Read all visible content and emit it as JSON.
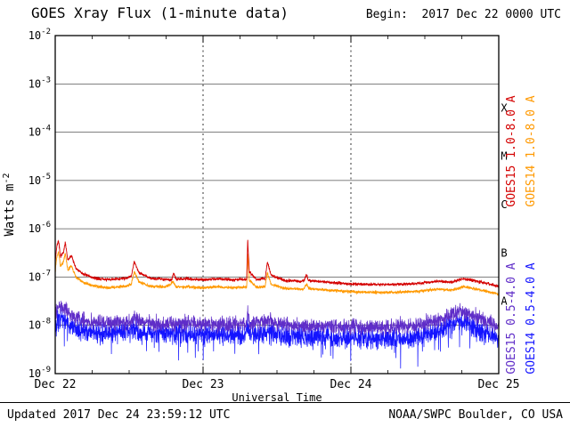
{
  "header": {
    "title": "GOES Xray Flux (1-minute data)",
    "begin_label": "Begin:  2017 Dec 22 0000 UTC"
  },
  "footer": {
    "updated": "Updated 2017 Dec 24 23:59:12 UTC",
    "source": "NOAA/SWPC Boulder, CO USA"
  },
  "chart_data": {
    "type": "line",
    "title": "GOES Xray Flux (1-minute data)",
    "begin": "2017 Dec 22 0000 UTC",
    "updated": "2017 Dec 24 23:59:12 UTC",
    "xlabel": "Universal Time",
    "ylabel_base": "Watts m",
    "ylabel_sup": "-2",
    "x_axis_unit": "days since 2017 Dec 22 0000 UTC",
    "y_axis_unit": "Watts m^-2 (log scale)",
    "xlim_days": [
      0,
      3
    ],
    "ylim_log10": [
      -9,
      -2
    ],
    "grid": true,
    "legend_position": "right",
    "x_ticks": [
      {
        "label": "Dec 22",
        "day": 0
      },
      {
        "label": "Dec 23",
        "day": 1
      },
      {
        "label": "Dec 24",
        "day": 2
      },
      {
        "label": "Dec 25",
        "day": 3
      }
    ],
    "y_tick_exponents": [
      -2,
      -3,
      -4,
      -5,
      -6,
      -7,
      -8,
      -9
    ],
    "grid_decades": [
      -3,
      -4,
      -5,
      -6,
      -7,
      -8
    ],
    "day_gridlines": [
      1,
      2
    ],
    "flare_classes": [
      {
        "label": "X",
        "log_center": -3.5
      },
      {
        "label": "M",
        "log_center": -4.5
      },
      {
        "label": "C",
        "log_center": -5.5
      },
      {
        "label": "B",
        "log_center": -6.5
      },
      {
        "label": "A",
        "log_center": -7.5
      }
    ],
    "series": [
      {
        "name": "GOES15 1.0-8.0 A",
        "color": "#d40000",
        "noise": 0.022,
        "points": [
          [
            0.0,
            2e-07
          ],
          [
            0.01,
            4.2e-07
          ],
          [
            0.022,
            5.8e-07
          ],
          [
            0.035,
            2.6e-07
          ],
          [
            0.055,
            3.2e-07
          ],
          [
            0.068,
            5.2e-07
          ],
          [
            0.085,
            2.2e-07
          ],
          [
            0.11,
            2.8e-07
          ],
          [
            0.14,
            1.5e-07
          ],
          [
            0.19,
            1.15e-07
          ],
          [
            0.26,
            9.5e-08
          ],
          [
            0.36,
            8.8e-08
          ],
          [
            0.48,
            9.5e-08
          ],
          [
            0.515,
            1.05e-07
          ],
          [
            0.535,
            2.1e-07
          ],
          [
            0.565,
            1.25e-07
          ],
          [
            0.64,
            9.5e-08
          ],
          [
            0.75,
            9e-08
          ],
          [
            0.79,
            8.8e-08
          ],
          [
            0.8,
            1.25e-07
          ],
          [
            0.815,
            9e-08
          ],
          [
            0.9,
            9.2e-08
          ],
          [
            1.0,
            8.8e-08
          ],
          [
            1.1,
            9.2e-08
          ],
          [
            1.2,
            8.8e-08
          ],
          [
            1.295,
            9e-08
          ],
          [
            1.302,
            6.2e-07
          ],
          [
            1.312,
            1.3e-07
          ],
          [
            1.36,
            9e-08
          ],
          [
            1.42,
            9.2e-08
          ],
          [
            1.435,
            2.05e-07
          ],
          [
            1.46,
            1.1e-07
          ],
          [
            1.55,
            8.5e-08
          ],
          [
            1.68,
            8.2e-08
          ],
          [
            1.7,
            1.1e-07
          ],
          [
            1.715,
            8.5e-08
          ],
          [
            1.85,
            7.8e-08
          ],
          [
            2.0,
            7.2e-08
          ],
          [
            2.15,
            7e-08
          ],
          [
            2.3,
            7e-08
          ],
          [
            2.45,
            7.4e-08
          ],
          [
            2.6,
            8.2e-08
          ],
          [
            2.68,
            7.8e-08
          ],
          [
            2.76,
            9.2e-08
          ],
          [
            2.85,
            8.2e-08
          ],
          [
            2.95,
            7e-08
          ],
          [
            3.0,
            6.4e-08
          ]
        ]
      },
      {
        "name": "GOES14 1.0-8.0 A",
        "color": "#ff9900",
        "noise": 0.022,
        "points": [
          [
            0.0,
            1.3e-07
          ],
          [
            0.01,
            2.6e-07
          ],
          [
            0.022,
            3.4e-07
          ],
          [
            0.035,
            1.7e-07
          ],
          [
            0.055,
            2e-07
          ],
          [
            0.068,
            3.1e-07
          ],
          [
            0.085,
            1.4e-07
          ],
          [
            0.11,
            1.7e-07
          ],
          [
            0.14,
            1e-07
          ],
          [
            0.19,
            7.8e-08
          ],
          [
            0.26,
            6.5e-08
          ],
          [
            0.36,
            6e-08
          ],
          [
            0.48,
            6.5e-08
          ],
          [
            0.515,
            7.2e-08
          ],
          [
            0.535,
            1.3e-07
          ],
          [
            0.565,
            8e-08
          ],
          [
            0.64,
            6.5e-08
          ],
          [
            0.75,
            6.2e-08
          ],
          [
            0.8,
            8e-08
          ],
          [
            0.815,
            6.2e-08
          ],
          [
            0.9,
            6.3e-08
          ],
          [
            1.0,
            6e-08
          ],
          [
            1.1,
            6.3e-08
          ],
          [
            1.2,
            6e-08
          ],
          [
            1.295,
            6.2e-08
          ],
          [
            1.302,
            3.3e-07
          ],
          [
            1.312,
            8.5e-08
          ],
          [
            1.36,
            6.2e-08
          ],
          [
            1.42,
            6.3e-08
          ],
          [
            1.435,
            1.2e-07
          ],
          [
            1.46,
            7.2e-08
          ],
          [
            1.55,
            5.8e-08
          ],
          [
            1.68,
            5.6e-08
          ],
          [
            1.7,
            7.2e-08
          ],
          [
            1.715,
            5.8e-08
          ],
          [
            1.85,
            5.3e-08
          ],
          [
            2.0,
            5e-08
          ],
          [
            2.15,
            4.8e-08
          ],
          [
            2.3,
            4.8e-08
          ],
          [
            2.45,
            5.1e-08
          ],
          [
            2.6,
            5.6e-08
          ],
          [
            2.68,
            5.3e-08
          ],
          [
            2.76,
            6.3e-08
          ],
          [
            2.85,
            5.6e-08
          ],
          [
            2.95,
            4.8e-08
          ],
          [
            3.0,
            4.4e-08
          ]
        ]
      },
      {
        "name": "GOES15 0.5-4.0 A",
        "color": "#5f2dc8",
        "noise": 0.12,
        "points": [
          [
            0.0,
            1.6e-08
          ],
          [
            0.02,
            2.6e-08
          ],
          [
            0.05,
            2.3e-08
          ],
          [
            0.1,
            1.7e-08
          ],
          [
            0.16,
            1.35e-08
          ],
          [
            0.26,
            1.15e-08
          ],
          [
            0.4,
            1.1e-08
          ],
          [
            0.515,
            1.2e-08
          ],
          [
            0.535,
            1.6e-08
          ],
          [
            0.565,
            1.2e-08
          ],
          [
            0.7,
            1.05e-08
          ],
          [
            0.9,
            1.1e-08
          ],
          [
            1.1,
            1.05e-08
          ],
          [
            1.295,
            1.05e-08
          ],
          [
            1.302,
            1.9e-08
          ],
          [
            1.312,
            1.1e-08
          ],
          [
            1.435,
            1.25e-08
          ],
          [
            1.55,
            1e-08
          ],
          [
            1.8,
            9.6e-09
          ],
          [
            2.05,
            9.2e-09
          ],
          [
            2.3,
            9.2e-09
          ],
          [
            2.5,
            1.05e-08
          ],
          [
            2.62,
            1.35e-08
          ],
          [
            2.72,
            2e-08
          ],
          [
            2.8,
            1.75e-08
          ],
          [
            2.9,
            1.25e-08
          ],
          [
            3.0,
            9e-09
          ]
        ]
      },
      {
        "name": "GOES14 0.5-4.0 A",
        "color": "#1414ff",
        "noise": 0.16,
        "down_spikes": true,
        "points": [
          [
            0.0,
            1e-08
          ],
          [
            0.02,
            1.6e-08
          ],
          [
            0.05,
            1.4e-08
          ],
          [
            0.1,
            1e-08
          ],
          [
            0.16,
            8.5e-09
          ],
          [
            0.26,
            7.2e-09
          ],
          [
            0.4,
            6.8e-09
          ],
          [
            0.515,
            7.4e-09
          ],
          [
            0.535,
            9.5e-09
          ],
          [
            0.565,
            7.4e-09
          ],
          [
            0.7,
            6.6e-09
          ],
          [
            0.9,
            6.8e-09
          ],
          [
            1.1,
            6.4e-09
          ],
          [
            1.295,
            6.4e-09
          ],
          [
            1.302,
            1.05e-08
          ],
          [
            1.312,
            6.6e-09
          ],
          [
            1.435,
            7.4e-09
          ],
          [
            1.55,
            6.2e-09
          ],
          [
            1.8,
            5.8e-09
          ],
          [
            2.05,
            5.4e-09
          ],
          [
            2.3,
            5.2e-09
          ],
          [
            2.5,
            6e-09
          ],
          [
            2.62,
            8e-09
          ],
          [
            2.72,
            1.2e-08
          ],
          [
            2.8,
            1.05e-08
          ],
          [
            2.9,
            7.4e-09
          ],
          [
            3.0,
            5e-09
          ]
        ]
      }
    ],
    "right_labels": [
      {
        "text": "GOES15 1.0-8.0 A",
        "color": "#d40000",
        "col": 0,
        "band": "upper"
      },
      {
        "text": "GOES14 1.0-8.0 A",
        "color": "#ff9900",
        "col": 1,
        "band": "upper"
      },
      {
        "text": "GOES15 0.5-4.0 A",
        "color": "#5f2dc8",
        "col": 0,
        "band": "lower"
      },
      {
        "text": "GOES14 0.5-4.0 A",
        "color": "#1414ff",
        "col": 1,
        "band": "lower"
      }
    ]
  }
}
